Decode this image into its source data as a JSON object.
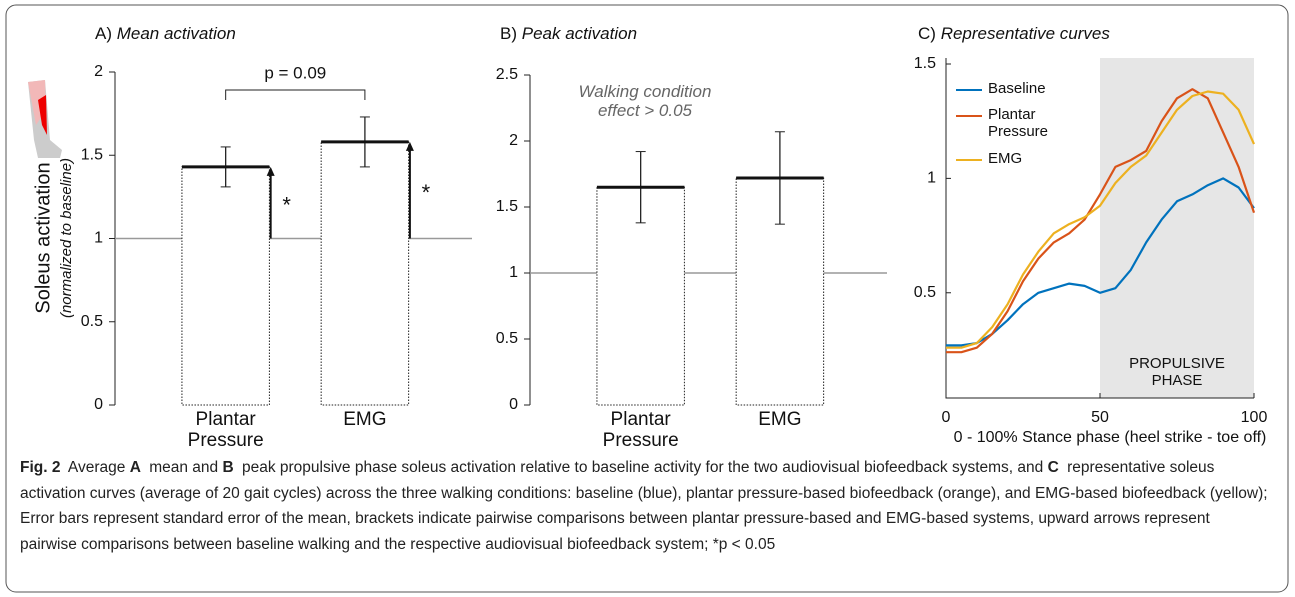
{
  "chart_data": [
    {
      "type": "bar",
      "panel": "A)",
      "title": "Mean activation",
      "ylabel": "Soleus activation",
      "ylabel_sub": "(normalized to baseline)",
      "categories": [
        "Plantar Pressure",
        "EMG"
      ],
      "values": [
        1.43,
        1.58
      ],
      "errors": [
        0.12,
        0.15
      ],
      "baseline": 1,
      "ylim": [
        0,
        2
      ],
      "yticks": [
        0,
        0.5,
        1,
        1.5,
        2
      ],
      "significance": [
        "*",
        "*"
      ],
      "bracket_label": "p = 0.09"
    },
    {
      "type": "bar",
      "panel": "B)",
      "title": "Peak activation",
      "categories": [
        "Plantar Pressure",
        "EMG"
      ],
      "values": [
        1.65,
        1.72
      ],
      "errors": [
        0.27,
        0.35
      ],
      "baseline": 1,
      "ylim": [
        0,
        2.5
      ],
      "yticks": [
        0,
        0.5,
        1,
        1.5,
        2,
        2.5
      ],
      "annotation": "Walking condition effect > 0.05"
    },
    {
      "type": "line",
      "panel": "C)",
      "title": "Representative curves",
      "xlabel": "0 - 100% Stance phase (heel strike - toe off)",
      "x": [
        0,
        5,
        10,
        15,
        20,
        25,
        30,
        35,
        40,
        45,
        50,
        55,
        60,
        65,
        70,
        75,
        80,
        85,
        90,
        95,
        100
      ],
      "series": [
        {
          "name": "Baseline",
          "color": "#0072bd",
          "values": [
            0.27,
            0.27,
            0.28,
            0.32,
            0.38,
            0.45,
            0.5,
            0.52,
            0.54,
            0.53,
            0.5,
            0.52,
            0.6,
            0.72,
            0.82,
            0.9,
            0.93,
            0.97,
            1.0,
            0.96,
            0.87
          ]
        },
        {
          "name": "Plantar Pressure",
          "color": "#d95319",
          "values": [
            0.24,
            0.24,
            0.26,
            0.32,
            0.42,
            0.55,
            0.65,
            0.72,
            0.76,
            0.82,
            0.93,
            1.05,
            1.08,
            1.12,
            1.25,
            1.35,
            1.39,
            1.35,
            1.2,
            1.05,
            0.85
          ]
        },
        {
          "name": "EMG",
          "color": "#edb120",
          "values": [
            0.26,
            0.26,
            0.28,
            0.35,
            0.45,
            0.58,
            0.68,
            0.76,
            0.8,
            0.83,
            0.88,
            0.98,
            1.05,
            1.1,
            1.2,
            1.3,
            1.36,
            1.38,
            1.37,
            1.3,
            1.15
          ]
        }
      ],
      "xlim": [
        0,
        100
      ],
      "xticks": [
        0,
        50,
        100
      ],
      "ylim": [
        0.04,
        1.5
      ],
      "yticks": [
        0.5,
        1,
        1.5
      ],
      "shaded": [
        50,
        100
      ],
      "shaded_label": "PROPULSIVE PHASE"
    }
  ],
  "caption": [
    {
      "text": "Fig. 2",
      "bold": true
    },
    {
      "text": " Average "
    },
    {
      "text": "A",
      "bold": true
    },
    {
      "text": " mean and "
    },
    {
      "text": "B",
      "bold": true
    },
    {
      "text": " peak propulsive phase soleus activation relative to baseline activity for the two audiovisual biofeedback systems, and "
    },
    {
      "text": "C",
      "bold": true
    },
    {
      "text": " representative soleus activation curves (average of 20 gait cycles) across the three walking conditions: baseline (blue), plantar pressure-based biofeedback (orange), and EMG-based biofeedback (yellow); Error bars represent standard error of the mean, brackets indicate pairwise comparisons between plantar pressure-based and EMG-based systems, upward arrows represent pairwise comparisons between baseline walking and the respective audiovisual biofeedback system; *p < 0.05"
    }
  ]
}
